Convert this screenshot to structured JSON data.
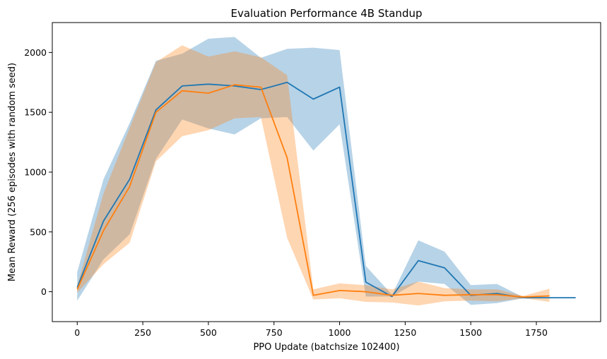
{
  "chart_data": {
    "type": "line",
    "title": "Evaluation Performance 4B Standup",
    "xlabel": "PPO Update (batchsize 102400)",
    "ylabel": "Mean Reward (256 episodes with random seed)",
    "xlim": [
      -95,
      1995
    ],
    "ylim": [
      -250,
      2250
    ],
    "xticks": [
      0,
      250,
      500,
      750,
      1000,
      1250,
      1500,
      1750
    ],
    "yticks": [
      0,
      500,
      1000,
      1500,
      2000
    ],
    "grid": false,
    "series": [
      {
        "color": "#1f77b4",
        "band_color": "#1f77b4",
        "band_opacity": 0.32,
        "x": [
          0,
          100,
          200,
          300,
          400,
          500,
          600,
          700,
          800,
          900,
          1000,
          1100,
          1200,
          1300,
          1400,
          1500,
          1600,
          1700,
          1800,
          1900
        ],
        "mean": [
          35,
          590,
          940,
          1520,
          1720,
          1735,
          1720,
          1690,
          1750,
          1610,
          1710,
          80,
          -40,
          260,
          200,
          -30,
          -15,
          -50,
          -50,
          -50
        ],
        "lower": [
          -75,
          270,
          480,
          1110,
          1440,
          1365,
          1315,
          1450,
          1460,
          1180,
          1400,
          -40,
          -40,
          85,
          65,
          -110,
          -95,
          -55,
          -50,
          -50
        ],
        "upper": [
          165,
          940,
          1410,
          1930,
          1990,
          2115,
          2130,
          1955,
          2030,
          2040,
          2020,
          215,
          -25,
          430,
          335,
          55,
          65,
          -45,
          -50,
          -50
        ]
      },
      {
        "color": "#ff7f0e",
        "band_color": "#ff7f0e",
        "band_opacity": 0.32,
        "x": [
          0,
          100,
          200,
          300,
          400,
          500,
          600,
          700,
          800,
          900,
          1000,
          1100,
          1200,
          1300,
          1400,
          1500,
          1600,
          1700,
          1800
        ],
        "mean": [
          20,
          510,
          880,
          1500,
          1680,
          1660,
          1730,
          1710,
          1120,
          -30,
          10,
          0,
          -30,
          -15,
          -30,
          -25,
          -25,
          -45,
          -35
        ],
        "lower": [
          -10,
          230,
          410,
          1090,
          1300,
          1350,
          1450,
          1460,
          450,
          -65,
          -55,
          -85,
          -90,
          -115,
          -80,
          -75,
          -80,
          -55,
          -85
        ],
        "upper": [
          50,
          820,
          1370,
          1920,
          2060,
          1965,
          2010,
          1960,
          1810,
          20,
          70,
          55,
          20,
          85,
          30,
          20,
          20,
          -35,
          25
        ]
      }
    ]
  }
}
